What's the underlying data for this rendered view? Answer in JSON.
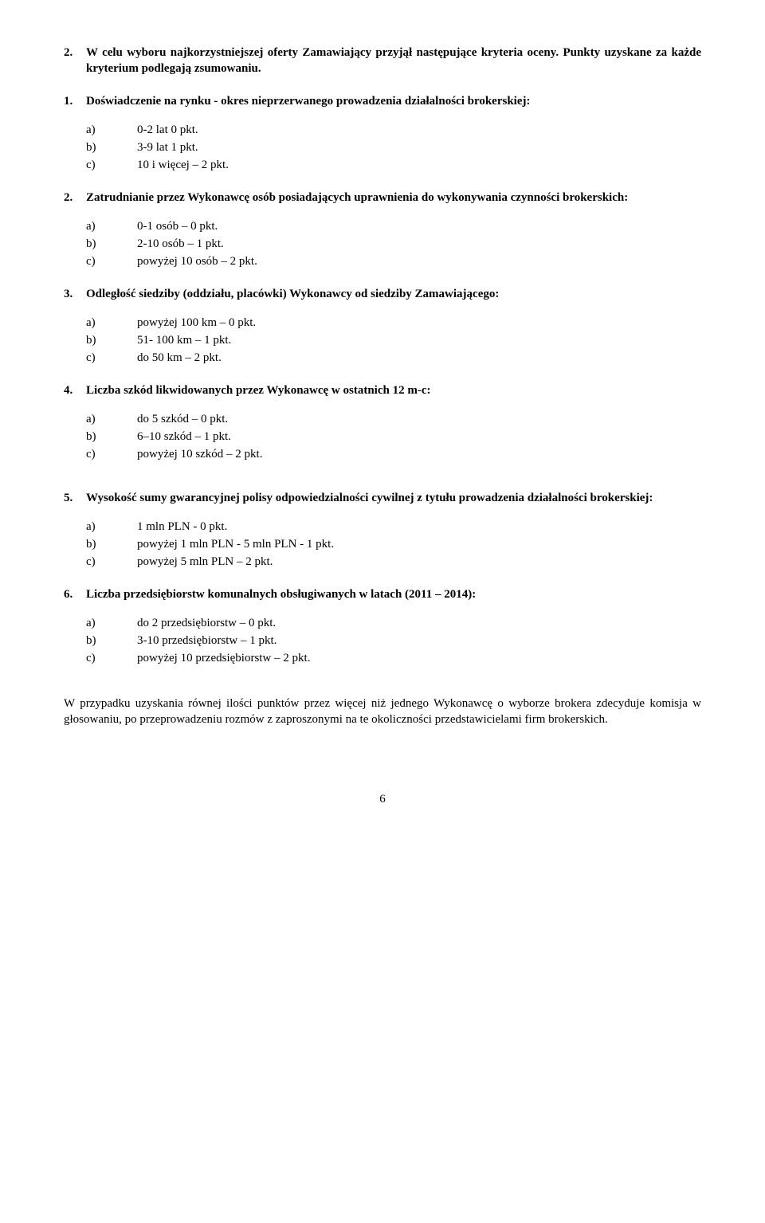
{
  "intro": {
    "num": "2.",
    "text": "W celu wyboru najkorzystniejszej oferty Zamawiający przyjął następujące kryteria oceny. Punkty uzyskane za każde kryterium podlegają zsumowaniu."
  },
  "sections": [
    {
      "num": "1.",
      "title": "Doświadczenie na rynku - okres nieprzerwanego prowadzenia działalności brokerskiej:",
      "items": [
        {
          "label": "a)",
          "text": "0-2 lat 0 pkt."
        },
        {
          "label": "b)",
          "text": "3-9 lat  1 pkt."
        },
        {
          "label": "c)",
          "text": "10 i więcej – 2 pkt."
        }
      ]
    },
    {
      "num": "2.",
      "title": "Zatrudnianie przez Wykonawcę osób posiadających uprawnienia do wykonywania czynności brokerskich:",
      "items": [
        {
          "label": "a)",
          "text": "0-1 osób – 0 pkt."
        },
        {
          "label": "b)",
          "text": "2-10 osób – 1 pkt."
        },
        {
          "label": "c)",
          "text": "powyżej 10 osób – 2 pkt."
        }
      ]
    },
    {
      "num": "3.",
      "title": "Odległość siedziby (oddziału, placówki) Wykonawcy od siedziby Zamawiającego:",
      "items": [
        {
          "label": "a)",
          "text": "powyżej 100 km – 0 pkt."
        },
        {
          "label": "b)",
          "text": "51- 100 km – 1 pkt."
        },
        {
          "label": "c)",
          "text": "do 50 km – 2 pkt."
        }
      ]
    },
    {
      "num": "4.",
      "title": "Liczba szkód likwidowanych przez Wykonawcę w ostatnich 12 m-c:",
      "items": [
        {
          "label": "a)",
          "text": "do 5 szkód – 0 pkt."
        },
        {
          "label": "b)",
          "text": "6–10 szkód – 1 pkt."
        },
        {
          "label": "c)",
          "text": "powyżej 10 szkód – 2 pkt."
        }
      ]
    },
    {
      "num": "5.",
      "title": "Wysokość sumy gwarancyjnej polisy odpowiedzialności cywilnej z tytułu prowadzenia działalności brokerskiej:",
      "items": [
        {
          "label": "a)",
          "text": "1 mln PLN - 0 pkt."
        },
        {
          "label": "b)",
          "text": "powyżej 1 mln PLN - 5 mln PLN  - 1 pkt."
        },
        {
          "label": "c)",
          "text": "powyżej 5 mln PLN – 2 pkt."
        }
      ]
    },
    {
      "num": "6.",
      "title": "Liczba przedsiębiorstw komunalnych obsługiwanych w latach (2011 – 2014):",
      "items": [
        {
          "label": "a)",
          "text": "do 2 przedsiębiorstw – 0 pkt."
        },
        {
          "label": "b)",
          "text": "3-10 przedsiębiorstw – 1 pkt."
        },
        {
          "label": "c)",
          "text": "powyżej 10 przedsiębiorstw – 2 pkt."
        }
      ]
    }
  ],
  "closing": "W przypadku uzyskania równej ilości punktów przez więcej niż jednego Wykonawcę o wyborze brokera zdecyduje komisja w głosowaniu, po przeprowadzeniu rozmów z zaproszonymi na te okoliczności przedstawicielami firm brokerskich.",
  "page_number": "6",
  "extra_gap_after_index": 3
}
